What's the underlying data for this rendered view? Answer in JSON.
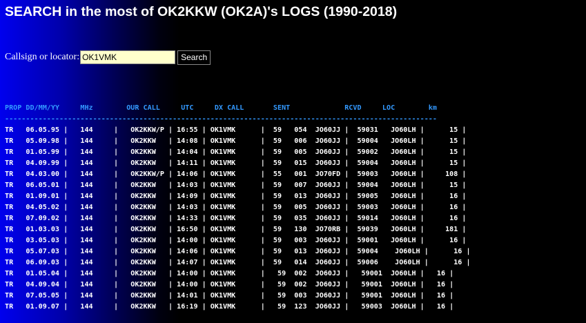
{
  "page": {
    "title": "SEARCH in the most of OK2KKW (OK2A)'s LOGS (1990-2018)"
  },
  "search": {
    "label": "Callsign or locator:",
    "value": "OK1VMK",
    "button_label": "Search"
  },
  "colors": {
    "header_text": "#3399ff",
    "input_bg": "#ffffcc",
    "gradient_left": "#0000ee",
    "background": "#000000"
  },
  "log": {
    "columns": [
      "PROP",
      "DD/MM/YY",
      "MHz",
      "OUR CALL",
      "UTC",
      "DX CALL",
      "SENT",
      "RCVD",
      "LOC",
      "km"
    ],
    "header_line": "PROP DD/MM/YY     MHz        OUR CALL     UTC     DX CALL       SENT             RCVD     LOC        km",
    "separator": "-------------------------------------------------------------------------------------------------------",
    "rows": [
      "TR   06.05.95 |   144     |   OK2KKW/P | 16:55 | OK1VMK      |  59   054  JO60JJ |  59031   JO60LH |      15 |",
      "TR   05.09.98 |   144     |   OK2KKW   | 14:08 | OK1VMK      |  59   006  JO60JJ |  59004   JO60LH |      15 |",
      "TR   01.05.99 |   144     |   OK2KKW   | 14:04 | OK1VMK      |  59   005  JO60JJ |  59002   JO60LH |      15 |",
      "TR   04.09.99 |   144     |   OK2KKW   | 14:11 | OK1VMK      |  59   015  JO60JJ |  59004   JO60LH |      15 |",
      "TR   04.03.00 |   144     |   OK2KKW/P | 14:06 | OK1VMK      |  55   001  JO70FD |  59003   JO60LH |     108 |",
      "TR   06.05.01 |   144     |   OK2KKW   | 14:03 | OK1VMK      |  59   007  JO60JJ |  59004   JO60LH |      15 |",
      "TR   01.09.01 |   144     |   OK2KKW   | 14:09 | OK1VMK      |  59   013  JO60JJ |  59005   JO60LH |      16 |",
      "TR   04.05.02 |   144     |   OK2KKW   | 14:03 | OK1VMK      |  59   005  JO60JJ |  59003   JO60LH |      16 |",
      "TR   07.09.02 |   144     |   OK2KKW   | 14:33 | OK1VMK      |  59   035  JO60JJ |  59014   JO60LH |      16 |",
      "TR   01.03.03 |   144     |   OK2KKW   | 16:50 | OK1VMK      |  59   130  JO70RB |  59039   JO60LH |     181 |",
      "TR   03.05.03 |   144     |   OK2KKW   | 14:00 | OK1VMK      |  59   003  JO60JJ |  59001   JO60LH |      16 |",
      "TR   05.07.03 |   144     |   OK2KKW   | 14:06 | OK1VMK      |  59   013  JO60JJ |  59004    JO60LH |      16 |",
      "TR   06.09.03 |   144     |   OK2KKW   | 14:07 | OK1VMK      |  59   014  JO60JJ |  59006    JO60LH |      16 |",
      "TR   01.05.04 |   144     |   OK2KKW   | 14:00 | OK1VMK      |   59  002  JO60JJ |   59001  JO60LH |   16 |",
      "TR   04.09.04 |   144     |   OK2KKW   | 14:00 | OK1VMK      |   59  002  JO60JJ |   59001  JO60LH |   16 |",
      "TR   07.05.05 |   144     |   OK2KKW   | 14:01 | OK1VMK      |   59  003  JO60JJ |   59001  JO60LH |   16 |",
      "TR   01.09.07 |   144     |   OK2KKW   | 16:19 | OK1VMK      |   59  123  JO60JJ |   59003  JO60LH |   16 |"
    ]
  }
}
